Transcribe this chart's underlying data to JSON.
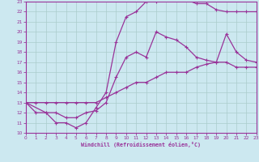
{
  "xlabel": "Windchill (Refroidissement éolien,°C)",
  "xlim": [
    0,
    23
  ],
  "ylim": [
    10,
    23
  ],
  "xticks": [
    0,
    1,
    2,
    3,
    4,
    5,
    6,
    7,
    8,
    9,
    10,
    11,
    12,
    13,
    14,
    15,
    16,
    17,
    18,
    19,
    20,
    21,
    22,
    23
  ],
  "yticks": [
    10,
    11,
    12,
    13,
    14,
    15,
    16,
    17,
    18,
    19,
    20,
    21,
    22,
    23
  ],
  "background_color": "#cce8f0",
  "grid_color": "#aacccc",
  "line_color": "#993399",
  "line1_x": [
    0,
    1,
    2,
    3,
    4,
    5,
    6,
    7,
    8,
    9,
    10,
    11,
    12,
    13,
    14,
    15,
    16,
    17,
    18,
    19,
    20,
    21,
    22,
    23
  ],
  "line1_y": [
    13,
    12,
    12,
    11,
    11,
    10.5,
    11,
    12.5,
    14,
    19,
    21.5,
    22,
    23,
    23,
    23.2,
    23.2,
    23.2,
    22.8,
    22.8,
    22.2,
    22.0,
    22.0,
    22.0,
    22.0
  ],
  "line2_x": [
    0,
    2,
    3,
    4,
    5,
    6,
    7,
    8,
    9,
    10,
    11,
    12,
    13,
    14,
    15,
    16,
    17,
    18,
    19,
    20,
    21,
    22,
    23
  ],
  "line2_y": [
    13,
    12,
    12,
    11.5,
    11.5,
    12,
    12.2,
    13,
    15.5,
    17.5,
    18,
    17.5,
    20,
    19.5,
    19.2,
    18.5,
    17.5,
    17.2,
    17.0,
    19.8,
    18.0,
    17.2,
    17.0
  ],
  "line3_x": [
    0,
    1,
    2,
    3,
    4,
    5,
    6,
    7,
    8,
    9,
    10,
    11,
    12,
    13,
    14,
    15,
    16,
    17,
    18,
    19,
    20,
    21,
    22,
    23
  ],
  "line3_y": [
    13,
    13,
    13,
    13,
    13,
    13,
    13,
    13,
    13.5,
    14,
    14.5,
    15,
    15,
    15.5,
    16,
    16,
    16,
    16.5,
    16.8,
    17,
    17,
    16.5,
    16.5,
    16.5
  ]
}
